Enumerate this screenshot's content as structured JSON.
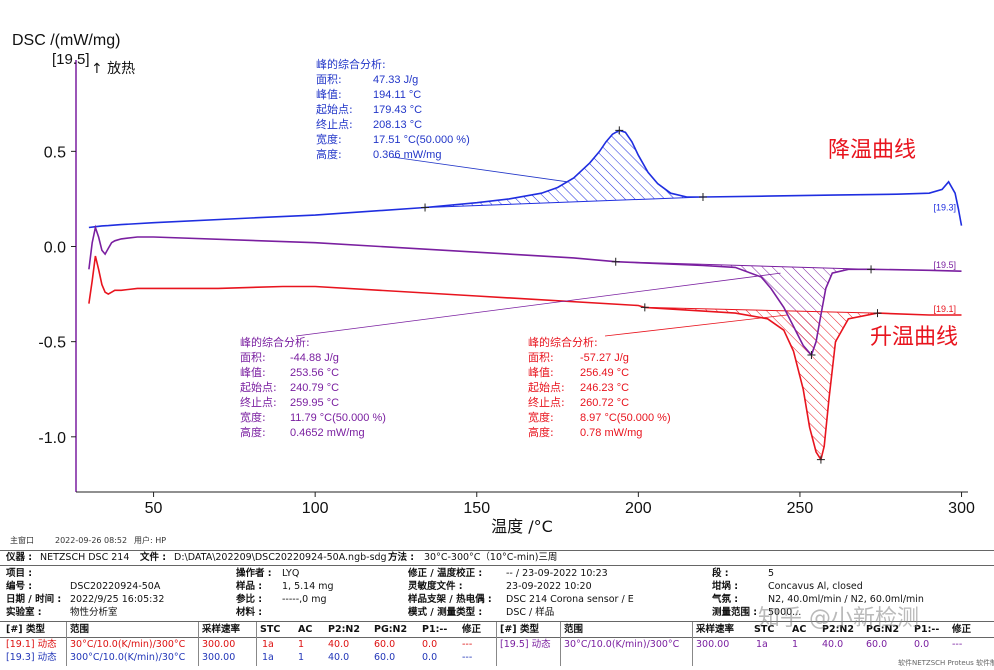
{
  "chart_data": {
    "type": "line",
    "xlabel": "温度 /°C",
    "ylabel": "DSC /(mW/mg)",
    "xlim": [
      26,
      302
    ],
    "ylim": [
      -1.29,
      0.98
    ],
    "xticks": [
      50,
      100,
      150,
      200,
      250,
      300
    ],
    "yticks": [
      0.5,
      0.0,
      -0.5,
      -1.0
    ],
    "ytick_labels": [
      "0.5",
      "0.0",
      "-0.5",
      "-1.0"
    ],
    "exo_label": "[19.5]",
    "exo_text": "↑ 放热",
    "annotations": [
      {
        "text": "降温曲线",
        "color": "#e8141e"
      },
      {
        "text": "升温曲线",
        "color": "#e8141e"
      }
    ],
    "series": [
      {
        "name": "[19.3]",
        "color": "#1f2ee0",
        "x": [
          30,
          32,
          34,
          36,
          40,
          50,
          80,
          100,
          134,
          150,
          160,
          170,
          175,
          180,
          185,
          188,
          190,
          192,
          194.1,
          196,
          198,
          200,
          203,
          206,
          210,
          215,
          220,
          240,
          260,
          280,
          290,
          294,
          296,
          298,
          299,
          300
        ],
        "y": [
          0.1,
          0.104,
          0.108,
          0.11,
          0.115,
          0.125,
          0.15,
          0.165,
          0.205,
          0.23,
          0.25,
          0.28,
          0.31,
          0.36,
          0.44,
          0.5,
          0.55,
          0.59,
          0.61,
          0.6,
          0.55,
          0.48,
          0.39,
          0.33,
          0.28,
          0.26,
          0.26,
          0.265,
          0.27,
          0.275,
          0.28,
          0.3,
          0.34,
          0.28,
          0.2,
          0.11
        ],
        "peak": {
          "x": 194.11,
          "y": 0.61
        },
        "onset": {
          "x": 134,
          "y": 0.205
        },
        "endset": {
          "x": 220,
          "y": 0.26
        },
        "end_label": "[19.3]"
      },
      {
        "name": "[19.5]",
        "color": "#7a1fa0",
        "x": [
          30,
          31,
          32,
          33,
          34,
          35,
          36,
          37,
          38,
          40,
          45,
          50,
          100,
          150,
          180,
          193,
          220,
          230,
          238,
          241,
          245,
          248,
          251,
          253.56,
          255,
          256.5,
          258,
          260,
          265,
          272,
          290,
          300
        ],
        "y": [
          -0.12,
          0.02,
          0.1,
          0.05,
          -0.02,
          -0.04,
          -0.01,
          0.02,
          0.03,
          0.04,
          0.05,
          0.05,
          0.02,
          -0.03,
          -0.06,
          -0.08,
          -0.1,
          -0.11,
          -0.16,
          -0.22,
          -0.32,
          -0.42,
          -0.52,
          -0.57,
          -0.5,
          -0.36,
          -0.22,
          -0.14,
          -0.12,
          -0.12,
          -0.125,
          -0.13
        ],
        "peak": {
          "x": 253.56,
          "y": -0.57
        },
        "onset": {
          "x": 193,
          "y": -0.08
        },
        "endset": {
          "x": 272,
          "y": -0.12
        },
        "end_label": "[19.5]"
      },
      {
        "name": "[19.1]",
        "color": "#e8141e",
        "x": [
          30,
          31,
          32,
          33,
          34,
          35,
          36,
          37,
          38,
          40,
          45,
          50,
          70,
          90,
          100,
          150,
          200,
          202,
          230,
          240,
          245,
          248,
          251,
          253,
          255,
          256.49,
          257.5,
          259,
          261,
          265,
          274,
          290,
          300
        ],
        "y": [
          -0.3,
          -0.18,
          -0.05,
          -0.12,
          -0.2,
          -0.24,
          -0.25,
          -0.24,
          -0.23,
          -0.23,
          -0.22,
          -0.22,
          -0.22,
          -0.21,
          -0.21,
          -0.26,
          -0.31,
          -0.32,
          -0.35,
          -0.38,
          -0.44,
          -0.55,
          -0.75,
          -0.95,
          -1.08,
          -1.12,
          -1.05,
          -0.8,
          -0.5,
          -0.38,
          -0.35,
          -0.36,
          -0.36
        ],
        "peak": {
          "x": 256.49,
          "y": -1.12
        },
        "onset": {
          "x": 202,
          "y": -0.32
        },
        "endset": {
          "x": 274,
          "y": -0.35
        },
        "end_label": "[19.1]"
      }
    ],
    "peak_boxes": [
      {
        "color": "#2236c8",
        "title": "峰的综合分析:",
        "rows": [
          {
            "k": "面积:",
            "v": "47.33 J/g"
          },
          {
            "k": "峰值:",
            "v": "194.11 °C"
          },
          {
            "k": "起始点:",
            "v": "179.43 °C"
          },
          {
            "k": "终止点:",
            "v": "208.13 °C"
          },
          {
            "k": "宽度:",
            "v": "17.51 °C(50.000 %)"
          },
          {
            "k": "高度:",
            "v": "0.366 mW/mg"
          }
        ]
      },
      {
        "color": "#7a1fa0",
        "title": "峰的综合分析:",
        "rows": [
          {
            "k": "面积:",
            "v": "-44.88 J/g"
          },
          {
            "k": "峰值:",
            "v": "253.56 °C"
          },
          {
            "k": "起始点:",
            "v": "240.79 °C"
          },
          {
            "k": "终止点:",
            "v": "259.95 °C"
          },
          {
            "k": "宽度:",
            "v": "11.79 °C(50.000 %)"
          },
          {
            "k": "高度:",
            "v": "0.4652 mW/mg"
          }
        ]
      },
      {
        "color": "#e8141e",
        "title": "峰的综合分析:",
        "rows": [
          {
            "k": "面积:",
            "v": "-57.27 J/g"
          },
          {
            "k": "峰值:",
            "v": "256.49 °C"
          },
          {
            "k": "起始点:",
            "v": "246.23 °C"
          },
          {
            "k": "终止点:",
            "v": "260.72 °C"
          },
          {
            "k": "宽度:",
            "v": "8.97 °C(50.000 %)"
          },
          {
            "k": "高度:",
            "v": "0.78 mW/mg"
          }
        ]
      }
    ]
  },
  "footer": {
    "window": "主窗口",
    "datetime": "2022-09-26 08:52",
    "user": "用户: HP"
  },
  "info": {
    "row1": {
      "instrument_label": "仪器 :",
      "instrument": "NETZSCH DSC 214",
      "file_label": "文件 :",
      "file": "D:\\DATA\\202209\\DSC20220924-50A.ngb-sdg",
      "method_label": "方法 :",
      "method": "30°C-300°C（10°C-min)三周"
    },
    "labels": {
      "project": "项目 :",
      "operator": "操作者 :",
      "correction": "修正 / 温度校正 :",
      "segment": "段 :",
      "id": "编号 :",
      "sample": "样品 :",
      "sensitivity": "灵敏度文件 :",
      "crucible": "坩埚 :",
      "date": "日期 / 时间 :",
      "reference": "参比 :",
      "holder": "样品支架 / 热电偶 :",
      "atmosphere": "气氛 :",
      "lab": "实验室 :",
      "material": "材料 :",
      "mode": "模式 / 测量类型 :",
      "range": "测量范围 :"
    },
    "values": {
      "operator": "LYQ",
      "correction": "-- / 23-09-2022 10:23",
      "segment": "5",
      "id": "DSC20220924-50A",
      "sample": "1, 5.14 mg",
      "sensitivity": "23-09-2022 10:20",
      "crucible": "Concavus Al, closed",
      "date": "2022/9/25 16:05:32",
      "reference": "-----,0 mg",
      "holder": "DSC 214 Corona sensor / E",
      "atmosphere": "N2, 40.0ml/min / N2, 60.0ml/min",
      "lab": "物性分析室",
      "mode": "DSC / 样品",
      "range": "5000..."
    },
    "seg_headers": [
      "[#] 类型",
      "范围",
      "采样速率",
      "STC",
      "AC",
      "P2:N2",
      "PG:N2",
      "P1:--",
      "修正"
    ],
    "seg_headers_right": [
      "[#] 类型",
      "范围",
      "采样速率",
      "STC",
      "AC",
      "P2:N2",
      "PG:N2",
      "P1:--",
      "修正"
    ],
    "seg_rows": [
      [
        "[19.1] 动态",
        "30°C/10.0(K/min)/300°C",
        "300.00",
        "1a",
        "1",
        "40.0",
        "60.0",
        "0.0",
        "---"
      ],
      [
        "[19.3] 动态",
        "300°C/10.0(K/min)/30°C",
        "300.00",
        "1a",
        "1",
        "40.0",
        "60.0",
        "0.0",
        "---"
      ]
    ],
    "seg_rows_right": [
      [
        "[19.5] 动态",
        "30°C/10.0(K/min)/300°C",
        "300.00",
        "1a",
        "1",
        "40.0",
        "60.0",
        "0.0",
        "---"
      ]
    ],
    "watermark": "知乎 @小新检测",
    "bottom_note": "软件NETZSCH Proteus 软件制作"
  }
}
